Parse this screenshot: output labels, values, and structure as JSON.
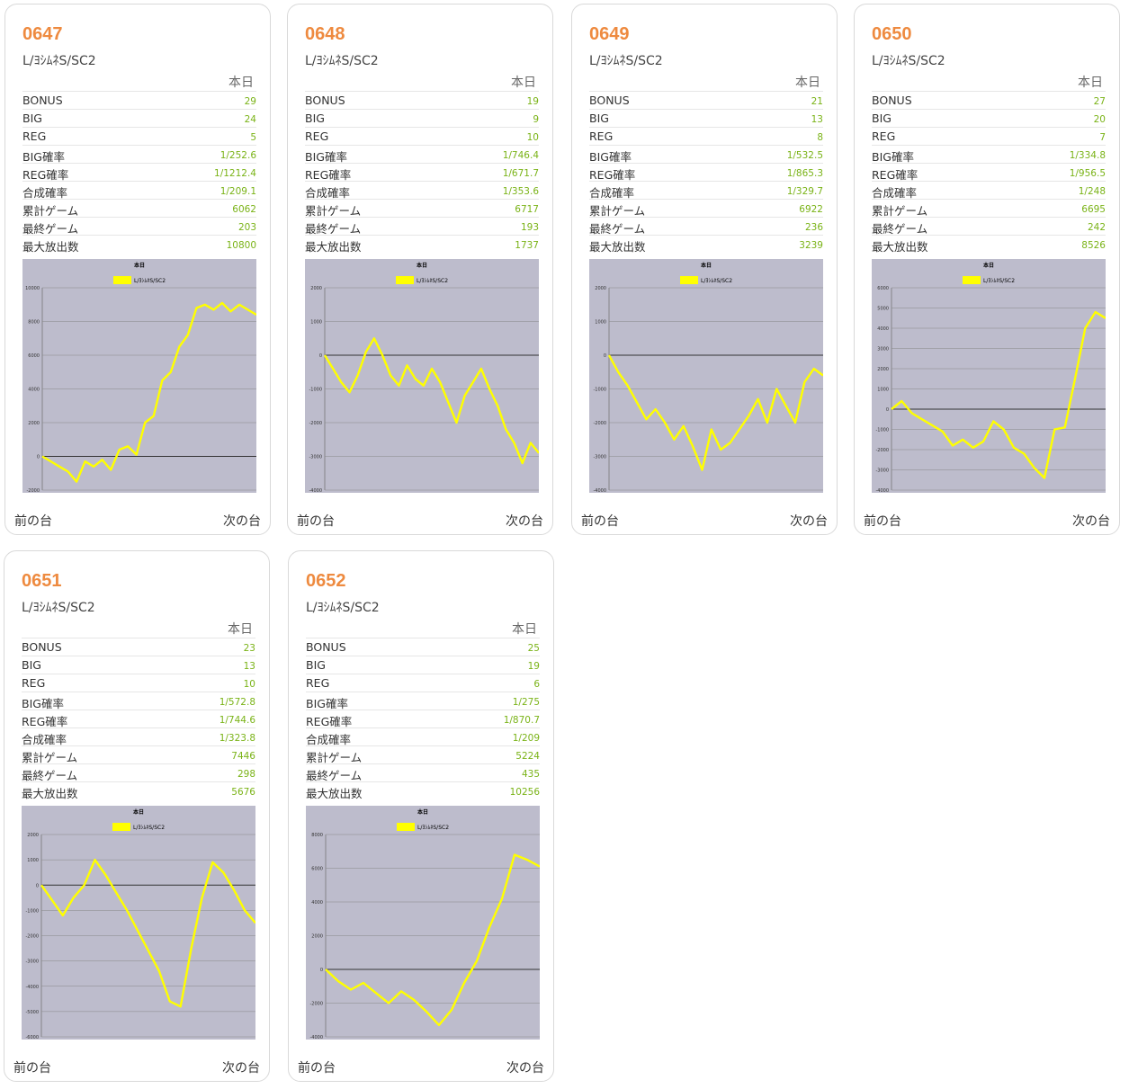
{
  "labels": {
    "day": "本日",
    "stats": [
      "BONUS",
      "BIG",
      "REG",
      "BIG確率",
      "REG確率",
      "合成確率",
      "累計ゲーム",
      "最終ゲーム",
      "最大放出数"
    ],
    "prev": "前の台",
    "next": "次の台"
  },
  "colors": {
    "accent": "#ee8a3f",
    "value": "#7ab317",
    "chart_bg": "#bdbccc",
    "line": "#ffff00"
  },
  "machines": [
    {
      "number": "0647",
      "model": "L/ﾖｼﾑﾈS/SC2",
      "stats": [
        "29",
        "24",
        "5",
        "1/252.6",
        "1/1212.4",
        "1/209.1",
        "6062",
        "203",
        "10800"
      ],
      "chart_data": {
        "type": "line",
        "title": "本日",
        "legend": "L/ﾖｼﾑﾈS/SC2",
        "ylim": [
          -2000,
          10000
        ],
        "yticks": [
          -2000,
          0,
          2000,
          4000,
          6000,
          8000,
          10000
        ],
        "values": [
          0,
          -300,
          -600,
          -900,
          -1500,
          -300,
          -600,
          -200,
          -800,
          400,
          600,
          100,
          2000,
          2400,
          4500,
          5000,
          6500,
          7200,
          8800,
          9000,
          8700,
          9100,
          8600,
          9000,
          8700,
          8400
        ]
      }
    },
    {
      "number": "0648",
      "model": "L/ﾖｼﾑﾈS/SC2",
      "stats": [
        "19",
        "9",
        "10",
        "1/746.4",
        "1/671.7",
        "1/353.6",
        "6717",
        "193",
        "1737"
      ],
      "chart_data": {
        "type": "line",
        "title": "本日",
        "legend": "L/ﾖｼﾑﾈS/SC2",
        "ylim": [
          -4000,
          2000
        ],
        "yticks": [
          -4000,
          -3000,
          -2000,
          -1000,
          0,
          1000,
          2000
        ],
        "values": [
          0,
          -400,
          -800,
          -1100,
          -600,
          100,
          500,
          0,
          -600,
          -900,
          -300,
          -700,
          -900,
          -400,
          -800,
          -1400,
          -2000,
          -1200,
          -800,
          -400,
          -1000,
          -1500,
          -2200,
          -2600,
          -3200,
          -2600,
          -2900
        ]
      }
    },
    {
      "number": "0649",
      "model": "L/ﾖｼﾑﾈS/SC2",
      "stats": [
        "21",
        "13",
        "8",
        "1/532.5",
        "1/865.3",
        "1/329.7",
        "6922",
        "236",
        "3239"
      ],
      "chart_data": {
        "type": "line",
        "title": "本日",
        "legend": "L/ﾖｼﾑﾈS/SC2",
        "ylim": [
          -4000,
          2000
        ],
        "yticks": [
          -4000,
          -3000,
          -2000,
          -1000,
          0,
          1000,
          2000
        ],
        "values": [
          0,
          -500,
          -900,
          -1400,
          -1900,
          -1600,
          -2000,
          -2500,
          -2100,
          -2700,
          -3400,
          -2200,
          -2800,
          -2600,
          -2200,
          -1800,
          -1300,
          -2000,
          -1000,
          -1500,
          -2000,
          -800,
          -400,
          -600
        ]
      }
    },
    {
      "number": "0650",
      "model": "L/ﾖｼﾑﾈS/SC2",
      "stats": [
        "27",
        "20",
        "7",
        "1/334.8",
        "1/956.5",
        "1/248",
        "6695",
        "242",
        "8526"
      ],
      "chart_data": {
        "type": "line",
        "title": "本日",
        "legend": "L/ﾖｼﾑﾈS/SC2",
        "ylim": [
          -4000,
          6000
        ],
        "yticks": [
          -4000,
          -3000,
          -2000,
          -1000,
          0,
          1000,
          2000,
          3000,
          4000,
          5000,
          6000
        ],
        "values": [
          0,
          400,
          -200,
          -500,
          -800,
          -1100,
          -1800,
          -1500,
          -1900,
          -1600,
          -600,
          -1000,
          -1900,
          -2200,
          -2900,
          -3400,
          -1000,
          -900,
          1500,
          4000,
          4800,
          4500
        ]
      }
    },
    {
      "number": "0651",
      "model": "L/ﾖｼﾑﾈS/SC2",
      "stats": [
        "23",
        "13",
        "10",
        "1/572.8",
        "1/744.6",
        "1/323.8",
        "7446",
        "298",
        "5676"
      ],
      "chart_data": {
        "type": "line",
        "title": "本日",
        "legend": "L/ﾖｼﾑﾈS/SC2",
        "ylim": [
          -6000,
          2000
        ],
        "yticks": [
          -6000,
          -5000,
          -4000,
          -3000,
          -2000,
          -1000,
          0,
          1000,
          2000
        ],
        "values": [
          0,
          -600,
          -1200,
          -500,
          0,
          1000,
          400,
          -300,
          -1000,
          -1800,
          -2600,
          -3400,
          -4600,
          -4800,
          -2500,
          -500,
          900,
          500,
          -200,
          -1000,
          -1500
        ]
      }
    },
    {
      "number": "0652",
      "model": "L/ﾖｼﾑﾈS/SC2",
      "stats": [
        "25",
        "19",
        "6",
        "1/275",
        "1/870.7",
        "1/209",
        "5224",
        "435",
        "10256"
      ],
      "chart_data": {
        "type": "line",
        "title": "本日",
        "legend": "L/ﾖｼﾑﾈS/SC2",
        "ylim": [
          -4000,
          8000
        ],
        "yticks": [
          -4000,
          -2000,
          0,
          2000,
          4000,
          6000,
          8000
        ],
        "values": [
          0,
          -700,
          -1200,
          -800,
          -1400,
          -2000,
          -1300,
          -1800,
          -2500,
          -3300,
          -2400,
          -800,
          500,
          2500,
          4200,
          6800,
          6500,
          6100
        ]
      }
    }
  ]
}
